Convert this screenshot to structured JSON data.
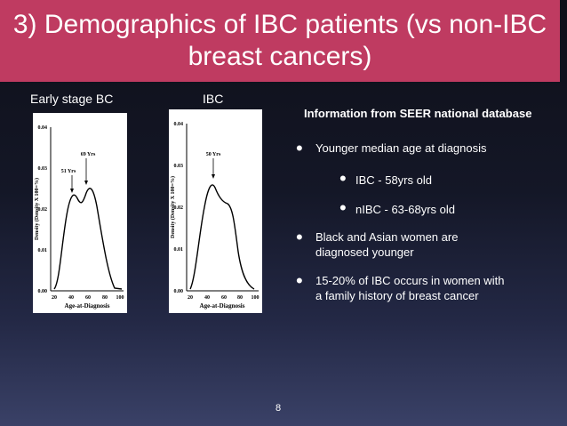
{
  "title": "3) Demographics of IBC patients (vs non-IBC breast cancers)",
  "labels": {
    "early": "Early stage BC",
    "ibc": "IBC"
  },
  "charts": [
    {
      "id": "early",
      "ylabel": "Density (Density X 100=%)",
      "xlabel": "Age-at-Diagnosis",
      "yticks": [
        "0.00",
        "0.01",
        "0.02",
        "0.03",
        "0.04"
      ],
      "xticks": [
        "20",
        "40",
        "60",
        "80",
        "100"
      ],
      "annotations": [
        "51 Yrs",
        "69 Yrs"
      ]
    },
    {
      "id": "ibc",
      "ylabel": "Density (Density X 100=%)",
      "xlabel": "Age-at-Diagnosis",
      "yticks": [
        "0.00",
        "0.01",
        "0.02",
        "0.03",
        "0.04"
      ],
      "xticks": [
        "20",
        "40",
        "60",
        "80",
        "100"
      ],
      "annotations": [
        "50 Yrs"
      ]
    }
  ],
  "info": {
    "heading": "Information from SEER national database",
    "bullets": [
      "Younger median age at diagnosis",
      "IBC - 58yrs old",
      "nIBC - 63-68yrs old",
      "Black and Asian women are",
      "diagnosed younger",
      "15-20% of IBC occurs in women with",
      "a family history of breast cancer"
    ]
  },
  "page_number": "8"
}
